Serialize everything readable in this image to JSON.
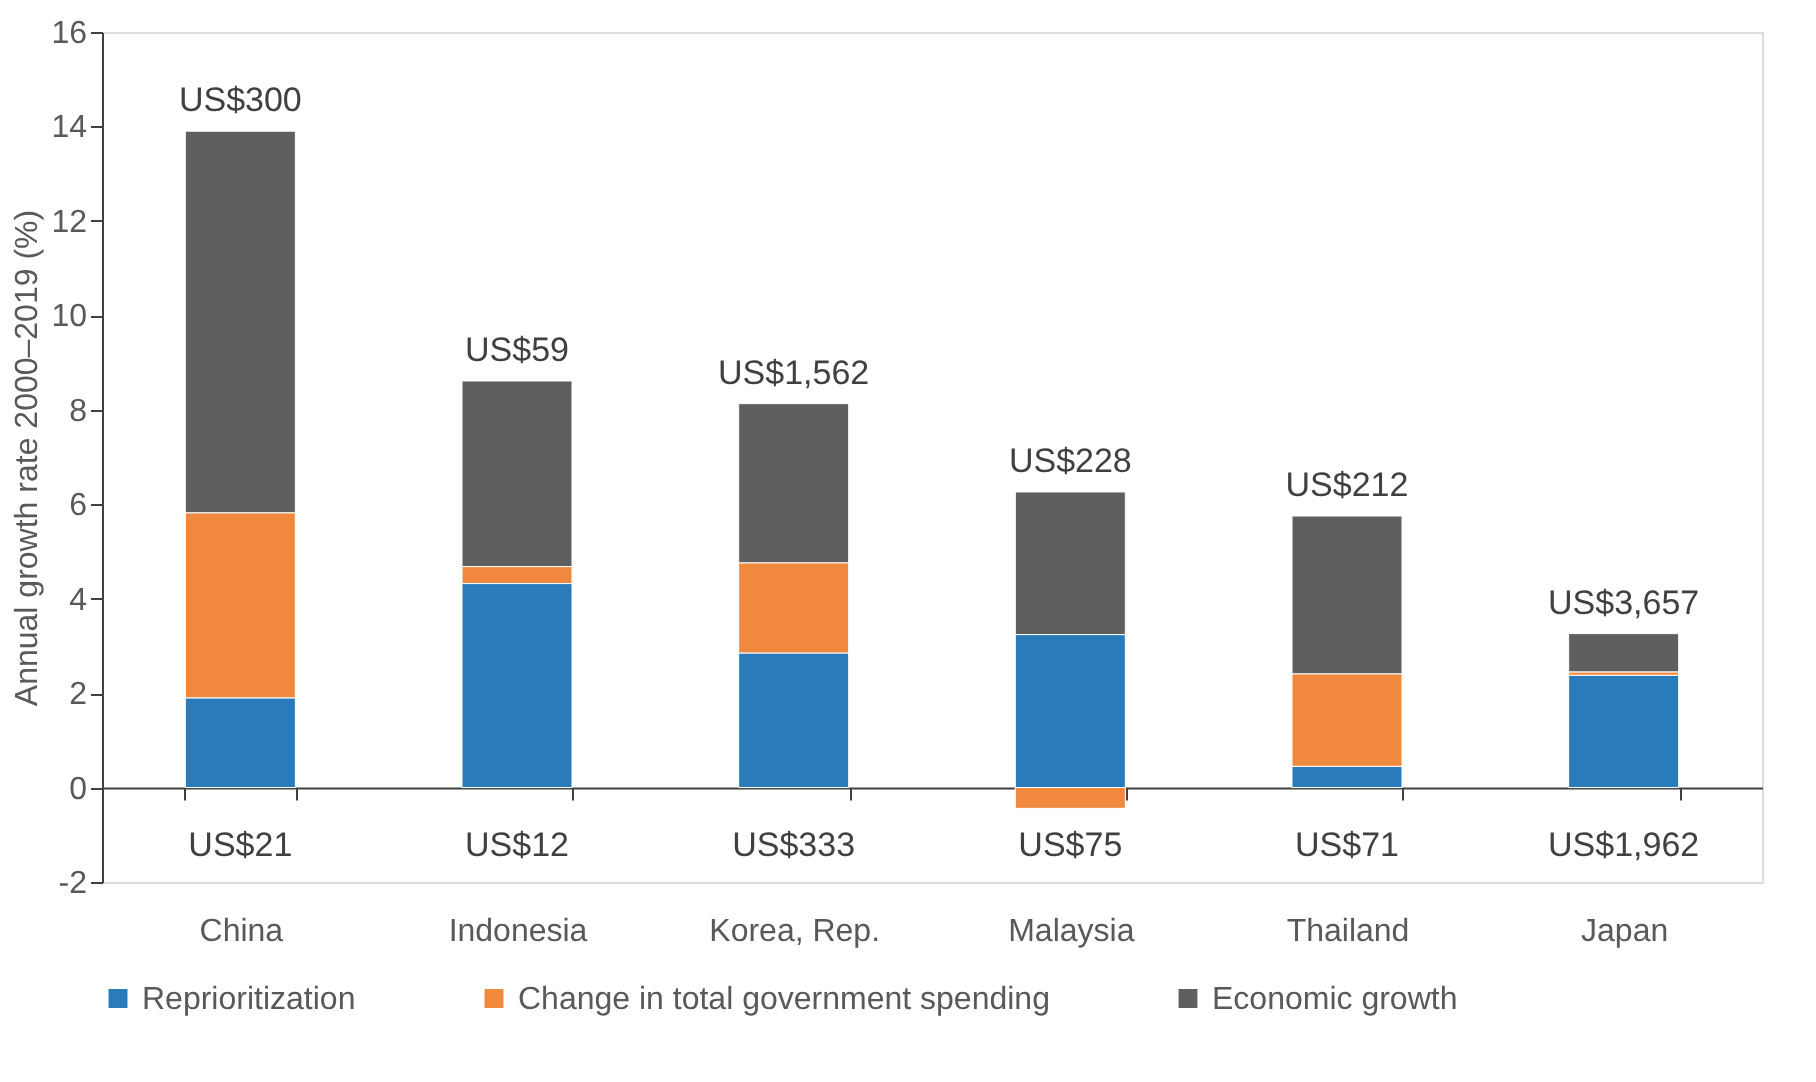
{
  "chart_data": {
    "type": "bar",
    "stacked": true,
    "ylabel": "Annual growth rate 2000–2019 (%)",
    "categories": [
      "China",
      "Indonesia",
      "Korea, Rep.",
      "Malaysia",
      "Thailand",
      "Japan"
    ],
    "series": [
      {
        "name": "Reprioritization",
        "color": "#2a7bb9",
        "values": [
          1.9,
          4.32,
          2.85,
          3.24,
          0.45,
          2.38
        ]
      },
      {
        "name": "Change in total government spending",
        "color": "#f0893d",
        "values": [
          3.92,
          0.36,
          1.91,
          -0.44,
          1.96,
          0.07
        ]
      },
      {
        "name": "Economic growth",
        "color": "#5f5f5f",
        "values": [
          8.08,
          3.93,
          3.37,
          3.02,
          3.34,
          0.81
        ]
      }
    ],
    "ylim": [
      -2,
      16
    ],
    "yticks": [
      -2,
      0,
      2,
      4,
      6,
      8,
      10,
      12,
      14,
      16
    ],
    "legend": "bottom",
    "annotations": [
      {
        "text": "US$300",
        "x": "China",
        "y": 13.9
      },
      {
        "text": "US$59",
        "x": "Indonesia",
        "y": 8.61
      },
      {
        "text": "US$1,562",
        "x": "Korea, Rep.",
        "y": 8.13
      },
      {
        "text": "US$228",
        "x": "Malaysia",
        "y": 6.26
      },
      {
        "text": "US$212",
        "x": "Thailand",
        "y": 5.75
      },
      {
        "text": "US$3,657",
        "x": "Japan",
        "y": 3.26
      },
      "US$21",
      "US$12",
      "US$333",
      "US$75",
      "US$71",
      "US$1,962"
    ]
  }
}
